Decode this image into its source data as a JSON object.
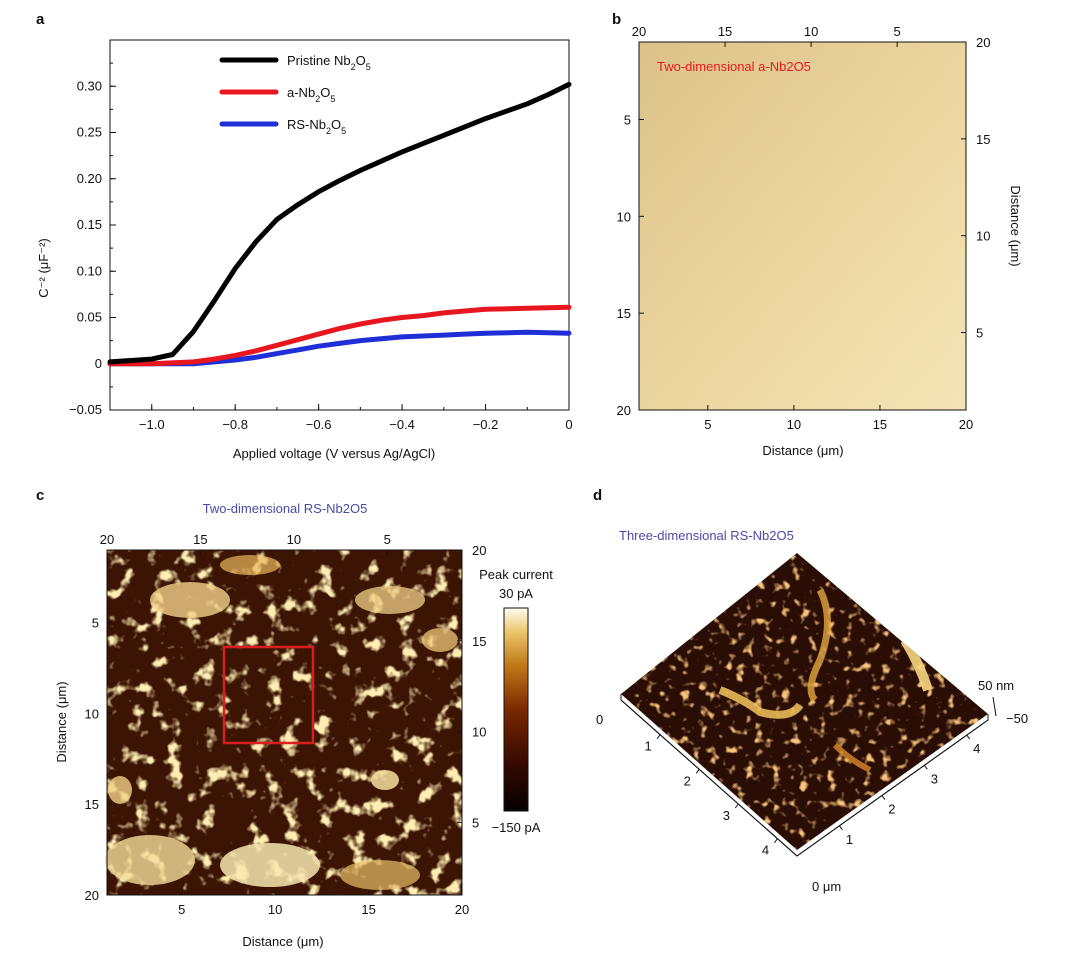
{
  "panels": {
    "a": "a",
    "b": "b",
    "c": "c",
    "d": "d"
  },
  "chart_data": [
    {
      "id": "a",
      "type": "line",
      "xlabel": "Applied voltage (V versus Ag/AgCl)",
      "ylabel": "C⁻² (μF⁻²)",
      "xlim": [
        -1.1,
        0.0
      ],
      "ylim": [
        -0.05,
        0.35
      ],
      "xticks": [
        -1.0,
        -0.8,
        -0.6,
        -0.4,
        -0.2,
        0
      ],
      "xtick_labels": [
        "−1.0",
        "−0.8",
        "−0.6",
        "−0.4",
        "−0.2",
        "0"
      ],
      "yticks": [
        -0.05,
        0,
        0.05,
        0.1,
        0.15,
        0.2,
        0.25,
        0.3
      ],
      "ytick_labels": [
        "−0.05",
        "0",
        "0.05",
        "0.10",
        "0.15",
        "0.20",
        "0.25",
        "0.30"
      ],
      "legend": "top-left",
      "series": [
        {
          "name": "Pristine Nb2O5",
          "color": "#000000",
          "x": [
            -1.1,
            -1.0,
            -0.95,
            -0.9,
            -0.85,
            -0.8,
            -0.75,
            -0.7,
            -0.65,
            -0.6,
            -0.55,
            -0.5,
            -0.45,
            -0.4,
            -0.35,
            -0.3,
            -0.25,
            -0.2,
            -0.15,
            -0.1,
            -0.05,
            0.0
          ],
          "y": [
            0.002,
            0.005,
            0.01,
            0.035,
            0.068,
            0.103,
            0.132,
            0.156,
            0.172,
            0.186,
            0.198,
            0.209,
            0.219,
            0.229,
            0.238,
            0.247,
            0.256,
            0.265,
            0.273,
            0.281,
            0.291,
            0.302
          ]
        },
        {
          "name": "a-Nb2O5",
          "color": "#e8171f",
          "x": [
            -1.1,
            -1.0,
            -0.9,
            -0.85,
            -0.8,
            -0.75,
            -0.7,
            -0.65,
            -0.6,
            -0.55,
            -0.5,
            -0.45,
            -0.4,
            -0.35,
            -0.3,
            -0.25,
            -0.2,
            -0.1,
            0.0
          ],
          "y": [
            0.0,
            0.0,
            0.002,
            0.005,
            0.009,
            0.014,
            0.02,
            0.026,
            0.032,
            0.038,
            0.043,
            0.047,
            0.05,
            0.052,
            0.055,
            0.057,
            0.059,
            0.06,
            0.061
          ]
        },
        {
          "name": "RS-Nb2O5",
          "color": "#1f2ed6",
          "x": [
            -1.1,
            -1.0,
            -0.9,
            -0.85,
            -0.8,
            -0.75,
            -0.7,
            -0.65,
            -0.6,
            -0.55,
            -0.5,
            -0.45,
            -0.4,
            -0.35,
            -0.3,
            -0.25,
            -0.2,
            -0.1,
            0.0
          ],
          "y": [
            0.0,
            0.0,
            0.0,
            0.002,
            0.004,
            0.007,
            0.011,
            0.015,
            0.019,
            0.022,
            0.025,
            0.027,
            0.029,
            0.03,
            0.031,
            0.032,
            0.033,
            0.034,
            0.033
          ]
        }
      ]
    },
    {
      "id": "b",
      "type": "heatmap",
      "title": "Two-dimensional a-Nb2O5",
      "title_color": "#e8171f",
      "xlabel": "Distance (μm)",
      "ylabel_right": "Distance (μm)",
      "bottom_ticks": [
        "5",
        "10",
        "15",
        "20"
      ],
      "bottom_values": [
        5,
        10,
        15,
        20
      ],
      "top_ticks": [
        "20",
        "15",
        "10",
        "5"
      ],
      "top_values": [
        20,
        15,
        10,
        5
      ],
      "left_ticks": [
        "5",
        "10",
        "15",
        "20"
      ],
      "left_values": [
        5,
        10,
        15,
        20
      ],
      "right_ticks": [
        "20",
        "15",
        "10",
        "5"
      ],
      "right_values": [
        20,
        15,
        10,
        5
      ],
      "range": [
        1,
        20
      ],
      "color": "#e9d49a"
    },
    {
      "id": "c",
      "type": "heatmap",
      "title": "Two-dimensional RS-Nb2O5",
      "title_color": "#4a4aa8",
      "xlabel": "Distance (μm)",
      "ylabel": "Distance (μm)",
      "bottom_ticks": [
        "5",
        "10",
        "15",
        "20"
      ],
      "bottom_values": [
        5,
        10,
        15,
        20
      ],
      "top_ticks": [
        "20",
        "15",
        "10",
        "5"
      ],
      "top_values": [
        20,
        15,
        10,
        5
      ],
      "left_ticks": [
        "5",
        "10",
        "15",
        "20"
      ],
      "left_values": [
        5,
        10,
        15,
        20
      ],
      "right_ticks": [
        "20",
        "15",
        "10",
        "5"
      ],
      "right_values": [
        20,
        15,
        10,
        5
      ],
      "range": [
        1,
        20
      ],
      "colorbar": {
        "title": "Peak current",
        "max_label": "30 pA",
        "min_label": "−150 pA"
      }
    },
    {
      "id": "d",
      "type": "heatmap",
      "title": "Three-dimensional RS-Nb2O5",
      "title_color": "#4a4aa8",
      "x_ticks": [
        "1",
        "2",
        "3",
        "4"
      ],
      "x_zero": "0 μm",
      "y_ticks": [
        "1",
        "2",
        "3",
        "4"
      ],
      "y_zero": "0",
      "z_max": "50 nm",
      "z_min": "−50"
    }
  ]
}
